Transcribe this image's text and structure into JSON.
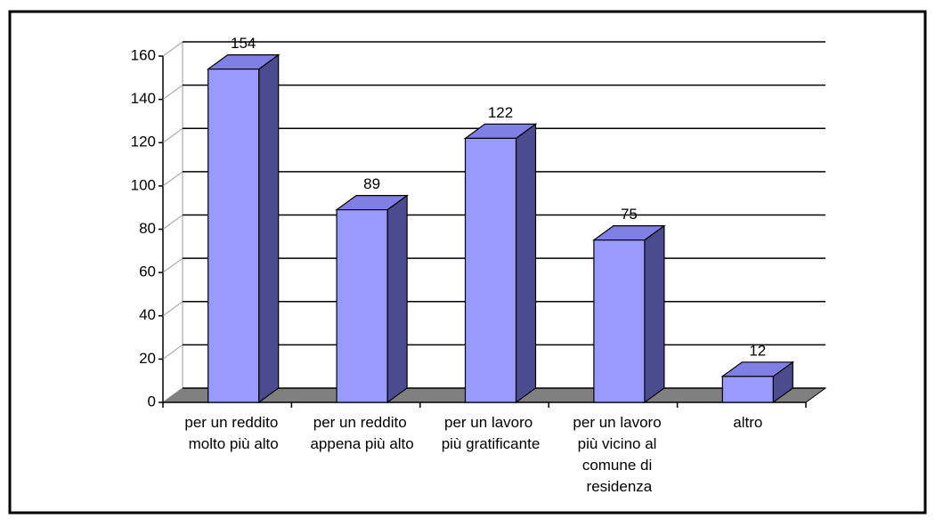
{
  "chart_data": {
    "type": "bar3d",
    "categories": [
      "per un reddito molto più alto",
      "per un reddito appena più alto",
      "per un lavoro più gratificante",
      "per un lavoro più vicino al comune di residenza",
      "altro"
    ],
    "values": [
      154,
      89,
      122,
      75,
      12
    ],
    "color": "#9999ff",
    "side_color": "#4b4b8f",
    "top_color": "#7f7fe6",
    "ylim": [
      0,
      160
    ],
    "yticks": [
      0,
      20,
      40,
      60,
      80,
      100,
      120,
      140,
      160
    ],
    "grid": true
  }
}
